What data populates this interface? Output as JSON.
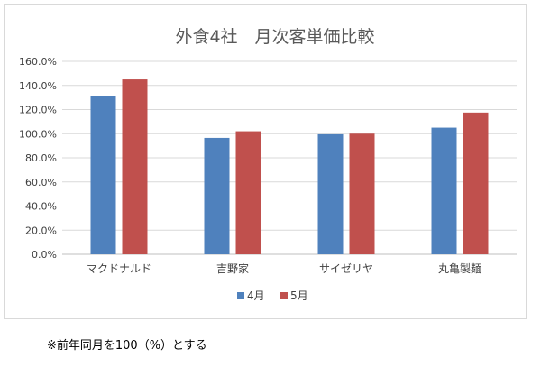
{
  "chart_data": {
    "type": "bar",
    "title": "外食4社　月次客単価比較",
    "xlabel": "",
    "ylabel": "",
    "categories": [
      "マクドナルド",
      "吉野家",
      "サイゼリヤ",
      "丸亀製麺"
    ],
    "series": [
      {
        "name": "4月",
        "color": "#4f81bd",
        "values": [
          131.0,
          96.5,
          99.5,
          105.0
        ]
      },
      {
        "name": "5月",
        "color": "#c0504d",
        "values": [
          145.0,
          102.0,
          100.0,
          117.5
        ]
      }
    ],
    "ylim": [
      0,
      160
    ],
    "yticks": [
      "0.0%",
      "20.0%",
      "40.0%",
      "60.0%",
      "80.0%",
      "100.0%",
      "120.0%",
      "140.0%",
      "160.0%"
    ],
    "grid": true,
    "legend_position": "bottom"
  },
  "footnote": "※前年同月を100（%）とする"
}
